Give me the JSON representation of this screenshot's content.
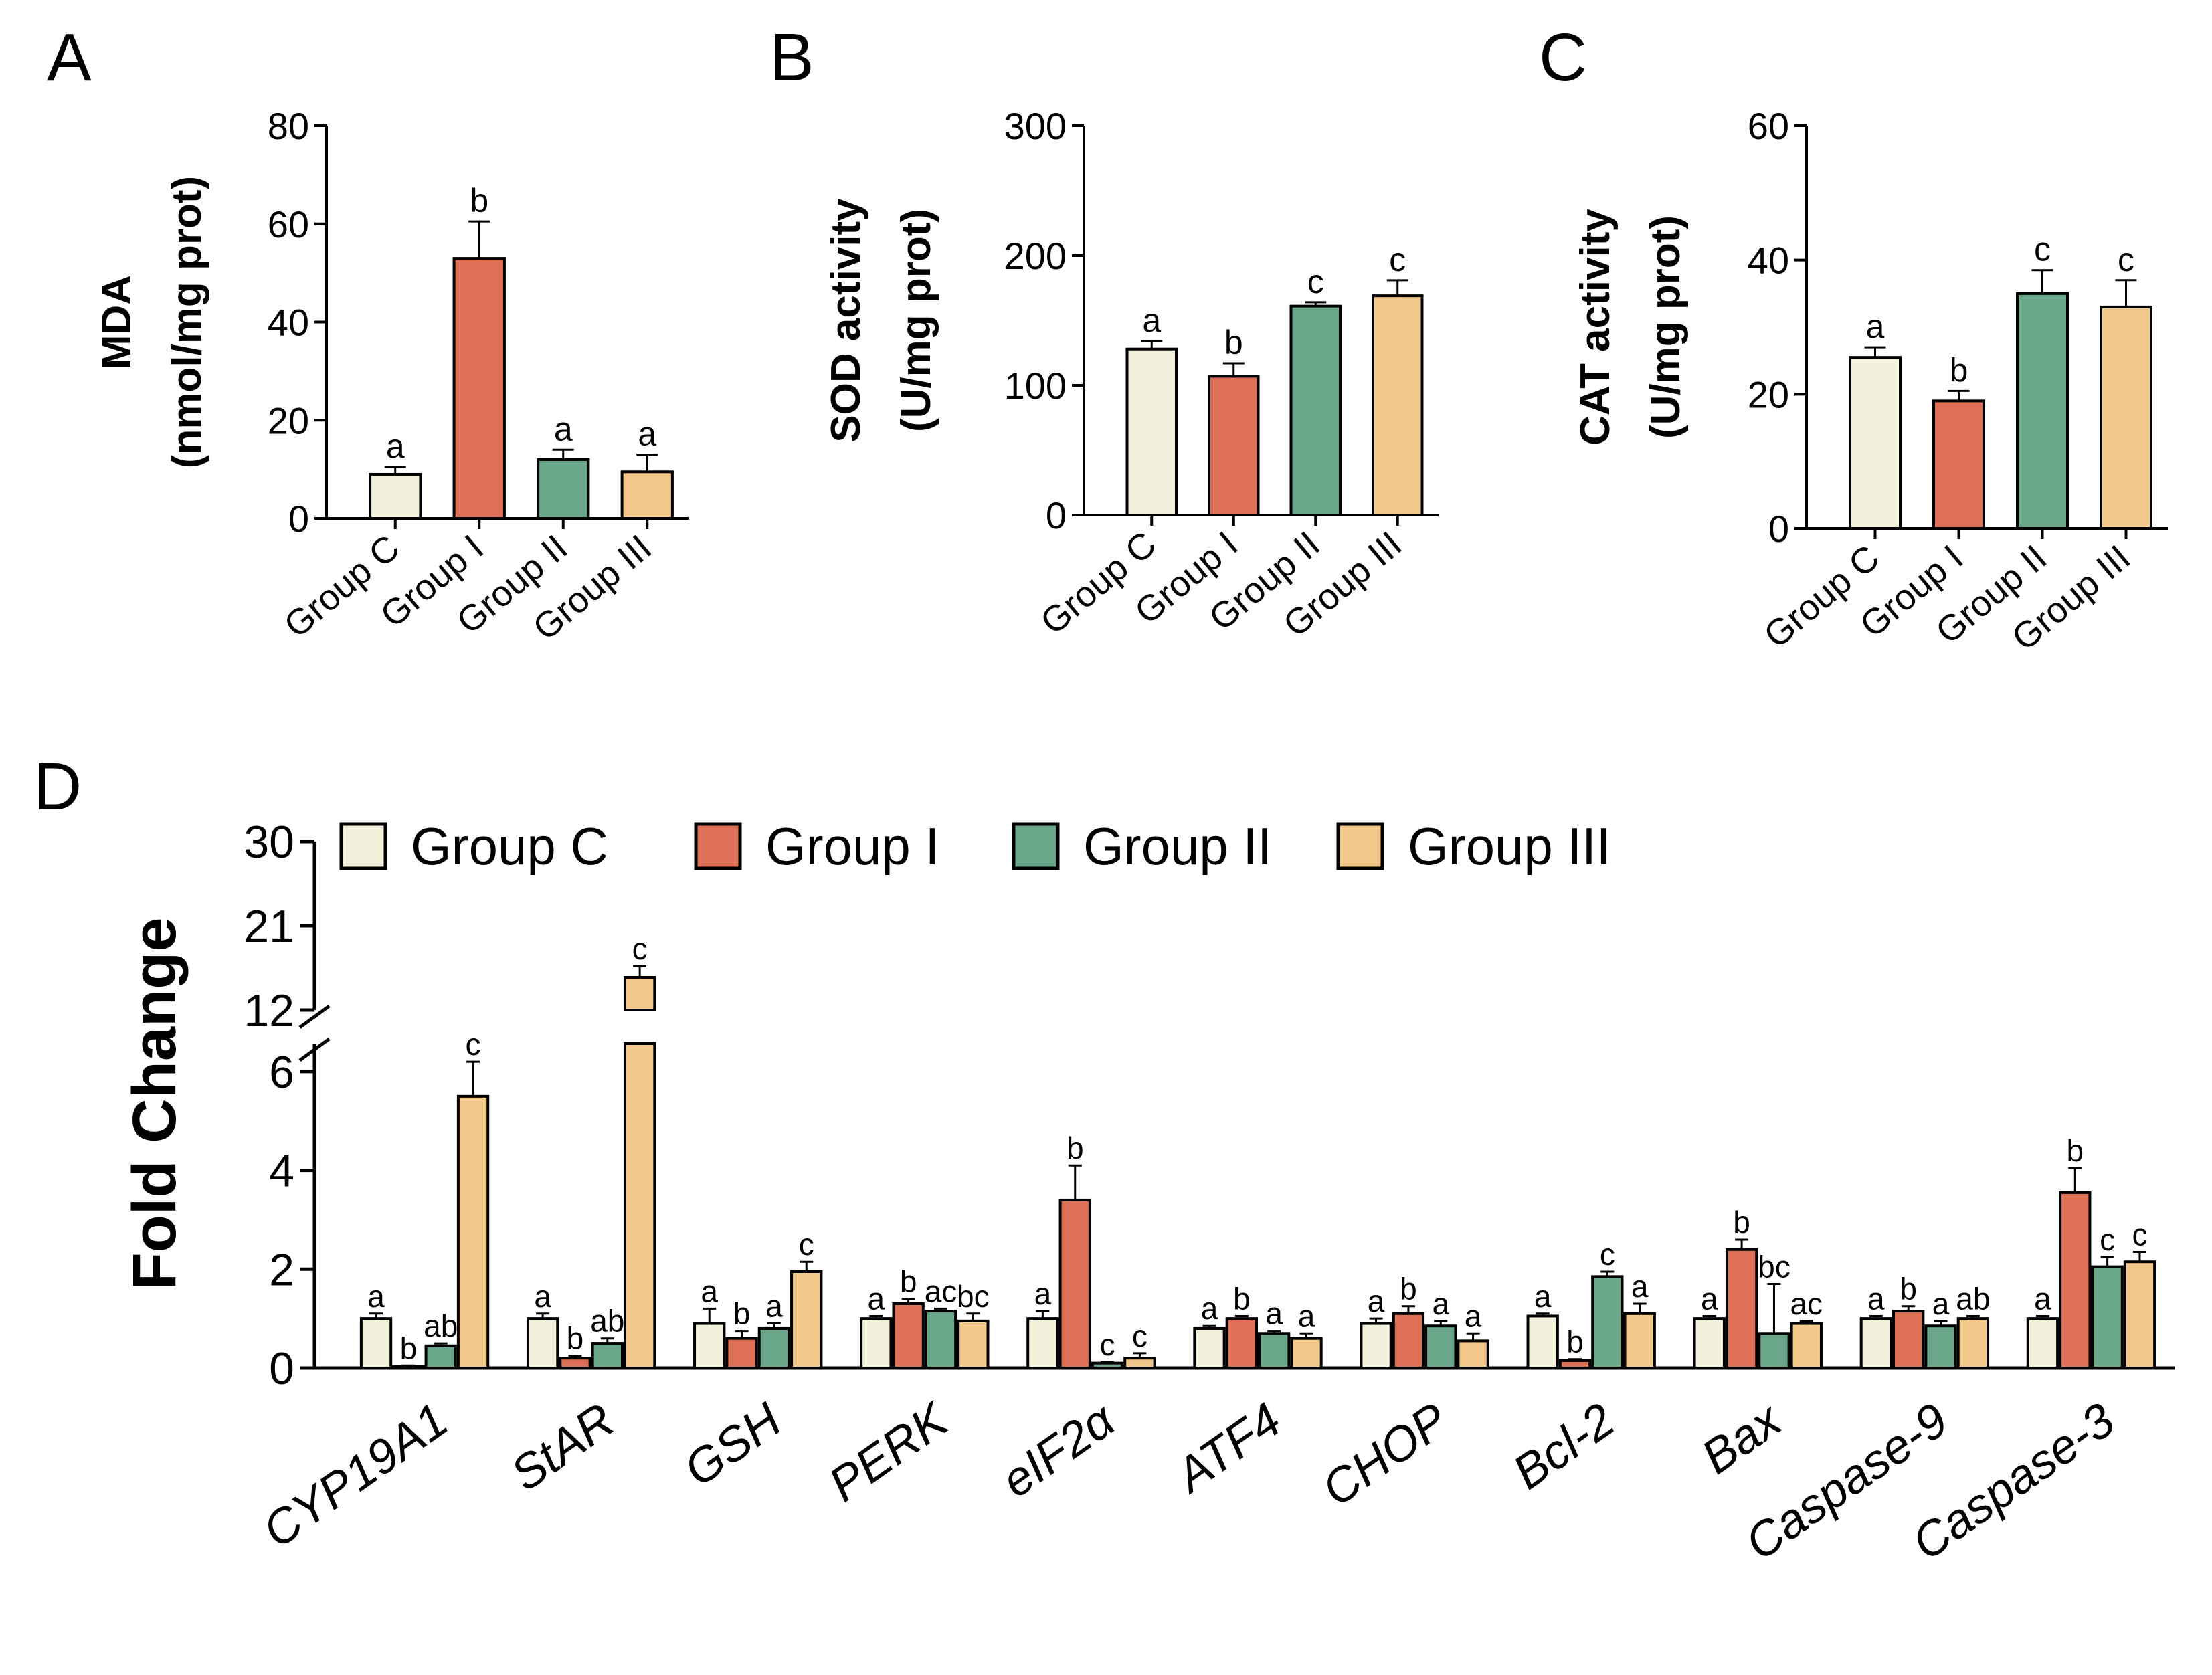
{
  "colors": {
    "Group C": "#f3f0dc",
    "Group I": "#de7058",
    "Group II": "#6aa78a",
    "Group III": "#f2c98b"
  },
  "chart_data": [
    {
      "panel": "A",
      "type": "bar",
      "ylabel": [
        "MDA",
        "(nmol/mg prot)"
      ],
      "categories": [
        "Group C",
        "Group I",
        "Group II",
        "Group III"
      ],
      "values": [
        9,
        53,
        12,
        9.5
      ],
      "errors": [
        1.5,
        7.5,
        2,
        3.5
      ],
      "sig": [
        "a",
        "b",
        "a",
        "a"
      ],
      "ylim": [
        0,
        80
      ],
      "yticks": [
        0,
        20,
        40,
        60,
        80
      ]
    },
    {
      "panel": "B",
      "type": "bar",
      "ylabel": [
        "SOD activity",
        "(U/mg prot)"
      ],
      "categories": [
        "Group C",
        "Group I",
        "Group II",
        "Group III"
      ],
      "values": [
        128,
        107,
        161,
        169
      ],
      "errors": [
        6,
        10,
        3,
        12
      ],
      "sig": [
        "a",
        "b",
        "c",
        "c"
      ],
      "ylim": [
        0,
        300
      ],
      "yticks": [
        0,
        100,
        200,
        300
      ]
    },
    {
      "panel": "C",
      "type": "bar",
      "ylabel": [
        "CAT activity",
        "(U/mg prot)"
      ],
      "categories": [
        "Group C",
        "Group I",
        "Group II",
        "Group III"
      ],
      "values": [
        25.5,
        19,
        35,
        33
      ],
      "errors": [
        1.5,
        1.5,
        3.5,
        4
      ],
      "sig": [
        "a",
        "b",
        "c",
        "c"
      ],
      "ylim": [
        0,
        60
      ],
      "yticks": [
        0,
        20,
        40,
        60
      ]
    },
    {
      "panel": "D",
      "type": "bar",
      "ylabel": "Fold Change",
      "legend": [
        "Group C",
        "Group I",
        "Group II",
        "Group III"
      ],
      "categories": [
        "CYP19A1",
        "StAR",
        "GSH",
        "PERK",
        "eIF2α",
        "ATF4",
        "CHOP",
        "Bcl-2",
        "Bax",
        "Caspase-9",
        "Caspase-3"
      ],
      "yticks_lower": [
        0,
        2,
        4,
        6
      ],
      "yticks_upper": [
        12,
        21,
        30
      ],
      "ylim_lower": [
        0,
        6.5
      ],
      "ylim_upper": [
        12,
        30
      ],
      "series": [
        {
          "name": "Group C",
          "values": [
            1.0,
            1.0,
            0.9,
            1.0,
            1.0,
            0.8,
            0.9,
            1.05,
            1.0,
            1.0,
            1.0
          ],
          "errors": [
            0.1,
            0.1,
            0.3,
            0.05,
            0.15,
            0.05,
            0.1,
            0.05,
            0.05,
            0.05,
            0.05
          ],
          "sig": [
            "a",
            "a",
            "a",
            "a",
            "a",
            "a",
            "a",
            "a",
            "a",
            "a",
            "a"
          ]
        },
        {
          "name": "Group I",
          "values": [
            0.03,
            0.2,
            0.6,
            1.3,
            3.4,
            1.0,
            1.1,
            0.15,
            2.4,
            1.15,
            3.55
          ],
          "errors": [
            0.02,
            0.05,
            0.15,
            0.1,
            0.7,
            0.05,
            0.15,
            0.03,
            0.2,
            0.1,
            0.5
          ],
          "sig": [
            "b",
            "b",
            "b",
            "b",
            "b",
            "b",
            "b",
            "b",
            "b",
            "b",
            "b"
          ]
        },
        {
          "name": "Group II",
          "values": [
            0.45,
            0.5,
            0.8,
            1.15,
            0.1,
            0.7,
            0.85,
            1.85,
            0.7,
            0.85,
            2.05
          ],
          "errors": [
            0.05,
            0.1,
            0.1,
            0.05,
            0.02,
            0.05,
            0.1,
            0.1,
            1.0,
            0.1,
            0.2
          ],
          "sig": [
            "ab",
            "ab",
            "a",
            "ac",
            "c",
            "a",
            "a",
            "c",
            "bc",
            "a",
            "c"
          ]
        },
        {
          "name": "Group III",
          "values": [
            5.5,
            15.5,
            1.95,
            0.95,
            0.2,
            0.6,
            0.55,
            1.1,
            0.9,
            1.0,
            2.15
          ],
          "errors": [
            0.7,
            1.2,
            0.2,
            0.15,
            0.1,
            0.1,
            0.15,
            0.2,
            0.05,
            0.05,
            0.2
          ],
          "sig": [
            "c",
            "c",
            "c",
            "bc",
            "c",
            "a",
            "a",
            "a",
            "ac",
            "ab",
            "c"
          ]
        }
      ]
    }
  ]
}
